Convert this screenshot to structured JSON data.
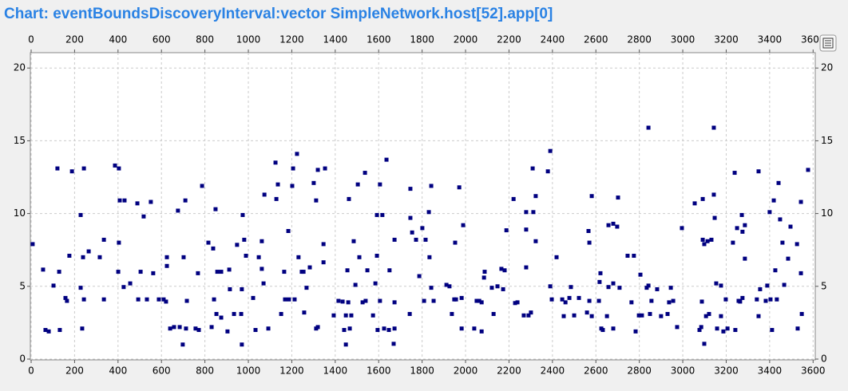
{
  "chart_data": {
    "type": "scatter",
    "title": "Chart: eventBoundsDiscoveryInterval:vector SimpleNetwork.host[52].app[0]",
    "color": "#000080",
    "grid": true,
    "xlim": [
      0,
      3610
    ],
    "ylim": [
      0,
      21
    ],
    "xticks": [
      0,
      200,
      400,
      600,
      800,
      1000,
      1200,
      1400,
      1600,
      1800,
      2000,
      2200,
      2400,
      2600,
      2800,
      3000,
      3200,
      3400,
      3600
    ],
    "yticks": [
      0,
      5,
      10,
      15,
      20
    ],
    "x": [
      7,
      55,
      66,
      81,
      103,
      121,
      129,
      132,
      158,
      165,
      176,
      188,
      228,
      228,
      235,
      239,
      243,
      243,
      265,
      316,
      335,
      335,
      386,
      404,
      401,
      404,
      408,
      426,
      430,
      456,
      489,
      504,
      493,
      518,
      533,
      551,
      562,
      588,
      610,
      625,
      621,
      625,
      640,
      658,
      676,
      684,
      698,
      702,
      713,
      710,
      717,
      757,
      768,
      772,
      787,
      816,
      831,
      838,
      842,
      849,
      857,
      853,
      875,
      875,
      904,
      912,
      915,
      934,
      948,
      970,
      974,
      970,
      981,
      967,
      989,
      1022,
      1033,
      1048,
      1062,
      1062,
      1074,
      1070,
      1092,
      1125,
      1129,
      1136,
      1151,
      1165,
      1169,
      1184,
      1187,
      1202,
      1206,
      1213,
      1224,
      1231,
      1246,
      1254,
      1257,
      1268,
      1283,
      1301,
      1312,
      1312,
      1320,
      1320,
      1346,
      1346,
      1353,
      1393,
      1415,
      1434,
      1441,
      1449,
      1449,
      1456,
      1460,
      1463,
      1467,
      1474,
      1485,
      1493,
      1504,
      1511,
      1526,
      1537,
      1540,
      1548,
      1574,
      1585,
      1592,
      1595,
      1592,
      1606,
      1606,
      1617,
      1625,
      1636,
      1647,
      1650,
      1669,
      1673,
      1673,
      1673,
      1743,
      1746,
      1746,
      1754,
      1772,
      1787,
      1801,
      1809,
      1816,
      1831,
      1834,
      1842,
      1842,
      1853,
      1912,
      1926,
      1937,
      1948,
      1952,
      1956,
      1971,
      1982,
      1982,
      1989,
      2040,
      2051,
      2063,
      2074,
      2074,
      2085,
      2088,
      2121,
      2129,
      2147,
      2165,
      2173,
      2180,
      2188,
      2221,
      2228,
      2239,
      2268,
      2279,
      2279,
      2279,
      2290,
      2301,
      2309,
      2312,
      2323,
      2323,
      2379,
      2390,
      2390,
      2397,
      2419,
      2445,
      2452,
      2460,
      2478,
      2485,
      2500,
      2522,
      2559,
      2566,
      2570,
      2570,
      2581,
      2581,
      2614,
      2617,
      2621,
      2625,
      2632,
      2651,
      2658,
      2658,
      2680,
      2680,
      2680,
      2698,
      2702,
      2709,
      2746,
      2764,
      2775,
      2783,
      2798,
      2805,
      2812,
      2834,
      2842,
      2842,
      2849,
      2856,
      2882,
      2900,
      2930,
      2937,
      2945,
      2956,
      2974,
      2996,
      3055,
      3077,
      3085,
      3088,
      3092,
      3092,
      3099,
      3099,
      3107,
      3114,
      3121,
      3132,
      3143,
      3143,
      3147,
      3154,
      3158,
      3176,
      3176,
      3187,
      3198,
      3206,
      3231,
      3239,
      3242,
      3250,
      3257,
      3264,
      3272,
      3275,
      3275,
      3286,
      3286,
      3341,
      3349,
      3349,
      3356,
      3382,
      3389,
      3400,
      3404,
      3411,
      3419,
      3426,
      3433,
      3441,
      3448,
      3459,
      3467,
      3485,
      3496,
      3526,
      3529,
      3544,
      3544,
      3548,
      3577
    ],
    "values": [
      7.9,
      6.15,
      2.0,
      1.9,
      5.05,
      13.1,
      6.0,
      2.0,
      4.2,
      4.0,
      7.1,
      12.9,
      9.9,
      4.9,
      2.1,
      7.0,
      4.1,
      13.1,
      7.4,
      7.0,
      8.2,
      4.1,
      13.3,
      13.1,
      6.0,
      8.0,
      10.9,
      4.95,
      10.9,
      5.2,
      10.7,
      6.0,
      4.1,
      9.8,
      4.1,
      10.8,
      5.9,
      4.1,
      4.1,
      7.0,
      3.95,
      6.4,
      2.1,
      2.2,
      10.2,
      2.2,
      1.0,
      7.0,
      2.1,
      10.9,
      4.0,
      2.1,
      5.9,
      2.0,
      11.9,
      8.0,
      2.2,
      7.6,
      4.1,
      10.3,
      6.0,
      3.1,
      2.85,
      6.0,
      1.9,
      6.15,
      4.8,
      3.1,
      7.85,
      4.8,
      9.9,
      1.0,
      8.2,
      3.1,
      7.1,
      4.2,
      2.0,
      7.0,
      8.1,
      6.2,
      11.3,
      5.2,
      2.1,
      13.5,
      11.0,
      12.0,
      3.1,
      6.0,
      4.1,
      8.8,
      4.1,
      11.9,
      13.1,
      4.1,
      14.1,
      7.0,
      6.0,
      6.0,
      3.2,
      4.9,
      6.3,
      12.1,
      10.9,
      2.1,
      13.0,
      2.2,
      6.65,
      7.9,
      13.1,
      3.0,
      4.0,
      3.95,
      2.0,
      3.0,
      1.0,
      6.1,
      3.9,
      11.0,
      2.1,
      3.0,
      8.1,
      5.1,
      12.0,
      7.0,
      3.9,
      12.8,
      4.0,
      6.1,
      3.0,
      5.2,
      7.1,
      2.0,
      9.9,
      12.0,
      4.0,
      9.9,
      2.1,
      13.7,
      2.0,
      6.1,
      1.05,
      8.2,
      3.9,
      2.1,
      3.1,
      11.7,
      9.7,
      8.7,
      8.2,
      5.7,
      9.0,
      4.0,
      8.2,
      10.1,
      7.0,
      11.9,
      4.9,
      4.0,
      5.1,
      5.0,
      3.1,
      4.1,
      8.0,
      4.1,
      11.8,
      2.1,
      4.2,
      9.2,
      2.1,
      4.0,
      4.0,
      1.9,
      3.9,
      5.6,
      6.0,
      4.9,
      3.1,
      5.0,
      6.2,
      4.8,
      6.1,
      8.85,
      11.0,
      3.85,
      3.9,
      3.0,
      10.1,
      8.9,
      6.3,
      3.0,
      3.2,
      13.1,
      10.1,
      11.2,
      8.1,
      12.9,
      14.3,
      5.0,
      4.1,
      7.0,
      4.1,
      2.95,
      3.9,
      4.2,
      4.95,
      3.0,
      4.2,
      3.2,
      8.8,
      4.0,
      8.0,
      11.2,
      2.95,
      4.0,
      5.3,
      5.9,
      2.1,
      2.0,
      2.95,
      9.2,
      4.95,
      5.2,
      9.3,
      2.1,
      9.1,
      11.1,
      4.9,
      7.1,
      3.9,
      7.1,
      1.9,
      3.0,
      5.8,
      3.0,
      4.9,
      15.9,
      5.05,
      3.1,
      4.0,
      4.8,
      2.95,
      3.1,
      3.9,
      4.9,
      4.0,
      2.2,
      9.0,
      10.7,
      2.0,
      2.2,
      3.95,
      8.2,
      11.0,
      1.05,
      7.9,
      2.95,
      8.1,
      3.1,
      8.2,
      15.9,
      11.3,
      9.7,
      5.2,
      2.1,
      5.05,
      2.95,
      1.9,
      4.1,
      2.1,
      8.0,
      12.8,
      2.0,
      9.0,
      4.0,
      3.95,
      9.9,
      8.75,
      4.2,
      9.2,
      6.9,
      4.1,
      12.9,
      2.95,
      4.8,
      4.0,
      5.05,
      10.1,
      4.1,
      2.0,
      10.9,
      6.1,
      4.1,
      12.1,
      9.6,
      8.0,
      5.1,
      6.9,
      9.1,
      7.9,
      2.1,
      10.8,
      5.9,
      3.1,
      13.0
    ]
  }
}
